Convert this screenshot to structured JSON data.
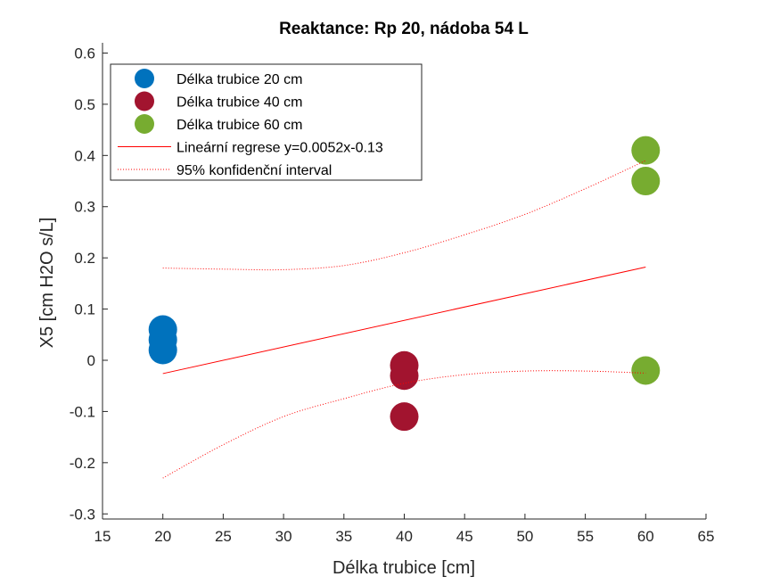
{
  "chart_data": {
    "type": "scatter",
    "title": "Reaktance: Rp 20, nádoba 54 L",
    "xlabel": "Délka trubice [cm]",
    "ylabel": "X5 [cm H2O s/L]",
    "xlim": [
      15,
      65
    ],
    "ylim": [
      -0.31,
      0.62
    ],
    "xticks": [
      "15",
      "20",
      "25",
      "30",
      "35",
      "40",
      "45",
      "50",
      "55",
      "60",
      "65"
    ],
    "yticks": [
      "-0.3",
      "-0.2",
      "-0.1",
      "0",
      "0.1",
      "0.2",
      "0.3",
      "0.4",
      "0.5",
      "0.6"
    ],
    "grid": false,
    "legend_position": "top-left",
    "series": [
      {
        "name": "Délka trubice 20 cm",
        "kind": "scatter",
        "color": "#0072BD",
        "points": [
          [
            20,
            0.06
          ],
          [
            20,
            0.04
          ],
          [
            20,
            0.02
          ]
        ]
      },
      {
        "name": "Délka trubice 40 cm",
        "kind": "scatter",
        "color": "#A2142F",
        "points": [
          [
            40,
            -0.01
          ],
          [
            40,
            -0.03
          ],
          [
            40,
            -0.11
          ]
        ]
      },
      {
        "name": "Délka trubice 60 cm",
        "kind": "scatter",
        "color": "#77AC30",
        "points": [
          [
            60,
            0.41
          ],
          [
            60,
            0.35
          ],
          [
            60,
            -0.02
          ]
        ]
      },
      {
        "name": "Lineární regrese y=0.0052x-0.13",
        "kind": "line",
        "color": "#FF0000",
        "points": [
          [
            20,
            -0.026
          ],
          [
            60,
            0.182
          ]
        ]
      },
      {
        "name": "95% konfidenční interval",
        "kind": "dotted",
        "color": "#FF0000",
        "upper": [
          [
            20,
            0.18
          ],
          [
            25,
            0.178
          ],
          [
            30,
            0.177
          ],
          [
            35,
            0.185
          ],
          [
            40,
            0.21
          ],
          [
            45,
            0.245
          ],
          [
            50,
            0.285
          ],
          [
            55,
            0.335
          ],
          [
            60,
            0.39
          ]
        ],
        "lower": [
          [
            20,
            -0.23
          ],
          [
            25,
            -0.165
          ],
          [
            30,
            -0.11
          ],
          [
            35,
            -0.075
          ],
          [
            40,
            -0.045
          ],
          [
            45,
            -0.028
          ],
          [
            50,
            -0.021
          ],
          [
            55,
            -0.021
          ],
          [
            60,
            -0.025
          ]
        ]
      }
    ]
  }
}
